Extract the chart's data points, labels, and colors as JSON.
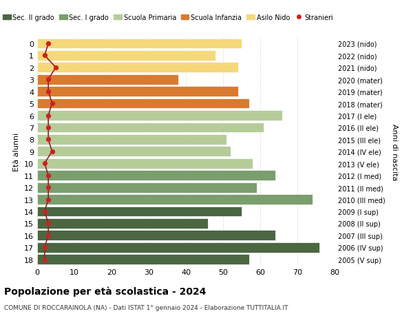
{
  "ages": [
    18,
    17,
    16,
    15,
    14,
    13,
    12,
    11,
    10,
    9,
    8,
    7,
    6,
    5,
    4,
    3,
    2,
    1,
    0
  ],
  "values": [
    57,
    76,
    64,
    46,
    55,
    74,
    59,
    64,
    58,
    52,
    51,
    61,
    66,
    57,
    54,
    38,
    54,
    48,
    55
  ],
  "stranieri": [
    2,
    2,
    3,
    3,
    2,
    3,
    3,
    3,
    2,
    4,
    3,
    3,
    3,
    4,
    3,
    3,
    5,
    2,
    3
  ],
  "right_labels": [
    "2005 (V sup)",
    "2006 (IV sup)",
    "2007 (III sup)",
    "2008 (II sup)",
    "2009 (I sup)",
    "2010 (III med)",
    "2011 (II med)",
    "2012 (I med)",
    "2013 (V ele)",
    "2014 (IV ele)",
    "2015 (III ele)",
    "2016 (II ele)",
    "2017 (I ele)",
    "2018 (mater)",
    "2019 (mater)",
    "2020 (mater)",
    "2021 (nido)",
    "2022 (nido)",
    "2023 (nido)"
  ],
  "bar_colors": [
    "#4a6741",
    "#4a6741",
    "#4a6741",
    "#4a6741",
    "#4a6741",
    "#7a9e6e",
    "#7a9e6e",
    "#7a9e6e",
    "#b5cc99",
    "#b5cc99",
    "#b5cc99",
    "#b5cc99",
    "#b5cc99",
    "#d97b2e",
    "#d97b2e",
    "#d97b2e",
    "#f5d87a",
    "#f5d87a",
    "#f5d87a"
  ],
  "legend_labels": [
    "Sec. II grado",
    "Sec. I grado",
    "Scuola Primaria",
    "Scuola Infanzia",
    "Asilo Nido",
    "Stranieri"
  ],
  "legend_colors": [
    "#4a6741",
    "#7a9e6e",
    "#b5cc99",
    "#d97b2e",
    "#f5d87a",
    "#cc2222"
  ],
  "ylabel_left": "Età alunni",
  "ylabel_right": "Anni di nascita",
  "title": "Popolazione per età scolastica - 2024",
  "subtitle": "COMUNE DI ROCCARAINOLA (NA) - Dati ISTAT 1° gennaio 2024 - Elaborazione TUTTITALIA.IT",
  "xlim": [
    0,
    80
  ],
  "xticks": [
    0,
    10,
    20,
    30,
    40,
    50,
    60,
    70,
    80
  ],
  "stranieri_color": "#cc2222",
  "line_color": "#8b2020"
}
